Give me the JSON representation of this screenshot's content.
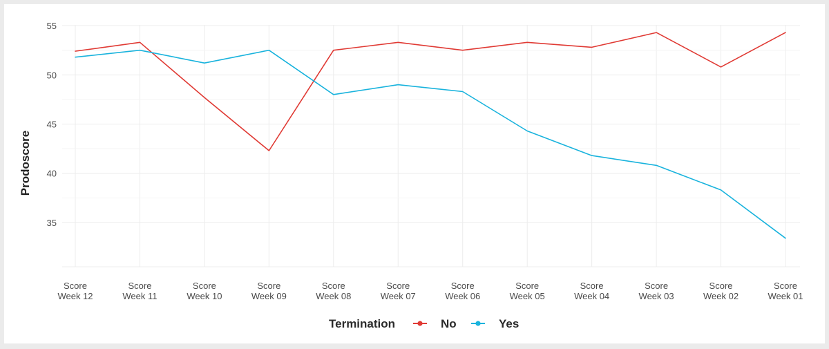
{
  "chart_data": {
    "type": "line",
    "ylabel": "Prodoscore",
    "categories": [
      [
        "Score",
        "Week 12"
      ],
      [
        "Score",
        "Week 11"
      ],
      [
        "Score",
        "Week 10"
      ],
      [
        "Score",
        "Week 09"
      ],
      [
        "Score",
        "Week 08"
      ],
      [
        "Score",
        "Week 07"
      ],
      [
        "Score",
        "Week 06"
      ],
      [
        "Score",
        "Week 05"
      ],
      [
        "Score",
        "Week 04"
      ],
      [
        "Score",
        "Week 03"
      ],
      [
        "Score",
        "Week 02"
      ],
      [
        "Score",
        "Week 01"
      ]
    ],
    "yticks": [
      35,
      40,
      45,
      50,
      55
    ],
    "ylim": [
      30.5,
      55.5
    ],
    "grid": true,
    "legend": {
      "title": "Termination",
      "placement": "bottom-center"
    },
    "series": [
      {
        "name": "No",
        "color": "#e03a34",
        "values": [
          52.4,
          53.3,
          47.7,
          42.3,
          52.5,
          53.3,
          52.5,
          53.3,
          52.8,
          54.3,
          50.8,
          54.3
        ]
      },
      {
        "name": "Yes",
        "color": "#19b3dd",
        "values": [
          51.8,
          52.5,
          51.2,
          52.5,
          48.0,
          49.0,
          48.3,
          44.3,
          41.8,
          40.8,
          38.3,
          33.4
        ]
      }
    ]
  }
}
